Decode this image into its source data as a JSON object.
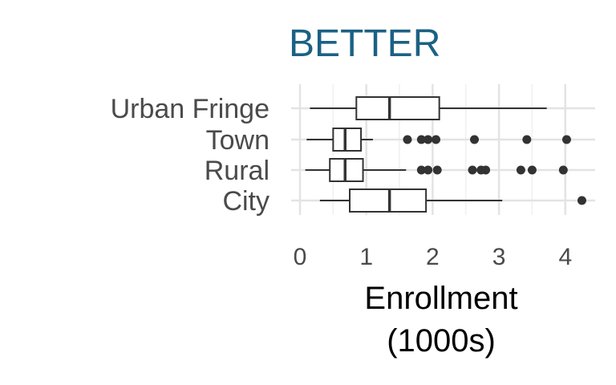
{
  "chart_data": {
    "type": "boxplot",
    "title": "BETTER",
    "xlabel": [
      "Enrollment",
      "(1000s)"
    ],
    "ylabel": "",
    "xlim": [
      -0.05,
      4.35
    ],
    "xticks": [
      0,
      1,
      2,
      3,
      4
    ],
    "grid": true,
    "categories": [
      "Urban Fringe",
      "Town",
      "Rural",
      "City"
    ],
    "series": [
      {
        "category": "Urban Fringe",
        "whisker_low": 0.15,
        "q1": 0.85,
        "median": 1.35,
        "q3": 2.1,
        "whisker_high": 3.72,
        "outliers": []
      },
      {
        "category": "Town",
        "whisker_low": 0.1,
        "q1": 0.5,
        "median": 0.68,
        "q3": 0.92,
        "whisker_high": 1.1,
        "outliers": [
          1.62,
          1.83,
          1.93,
          2.05,
          2.63,
          3.42,
          4.02
        ]
      },
      {
        "category": "Rural",
        "whisker_low": 0.08,
        "q1": 0.45,
        "median": 0.68,
        "q3": 0.95,
        "whisker_high": 1.6,
        "outliers": [
          1.83,
          1.93,
          2.07,
          2.6,
          2.73,
          2.8,
          3.33,
          3.5,
          3.97
        ]
      },
      {
        "category": "City",
        "whisker_low": 0.3,
        "q1": 0.75,
        "median": 1.35,
        "q3": 1.9,
        "whisker_high": 3.05,
        "outliers": [
          4.25
        ]
      }
    ],
    "colors": {
      "title": "#1b6184",
      "box_stroke": "#333333",
      "grid": "#e3e3e3"
    }
  }
}
